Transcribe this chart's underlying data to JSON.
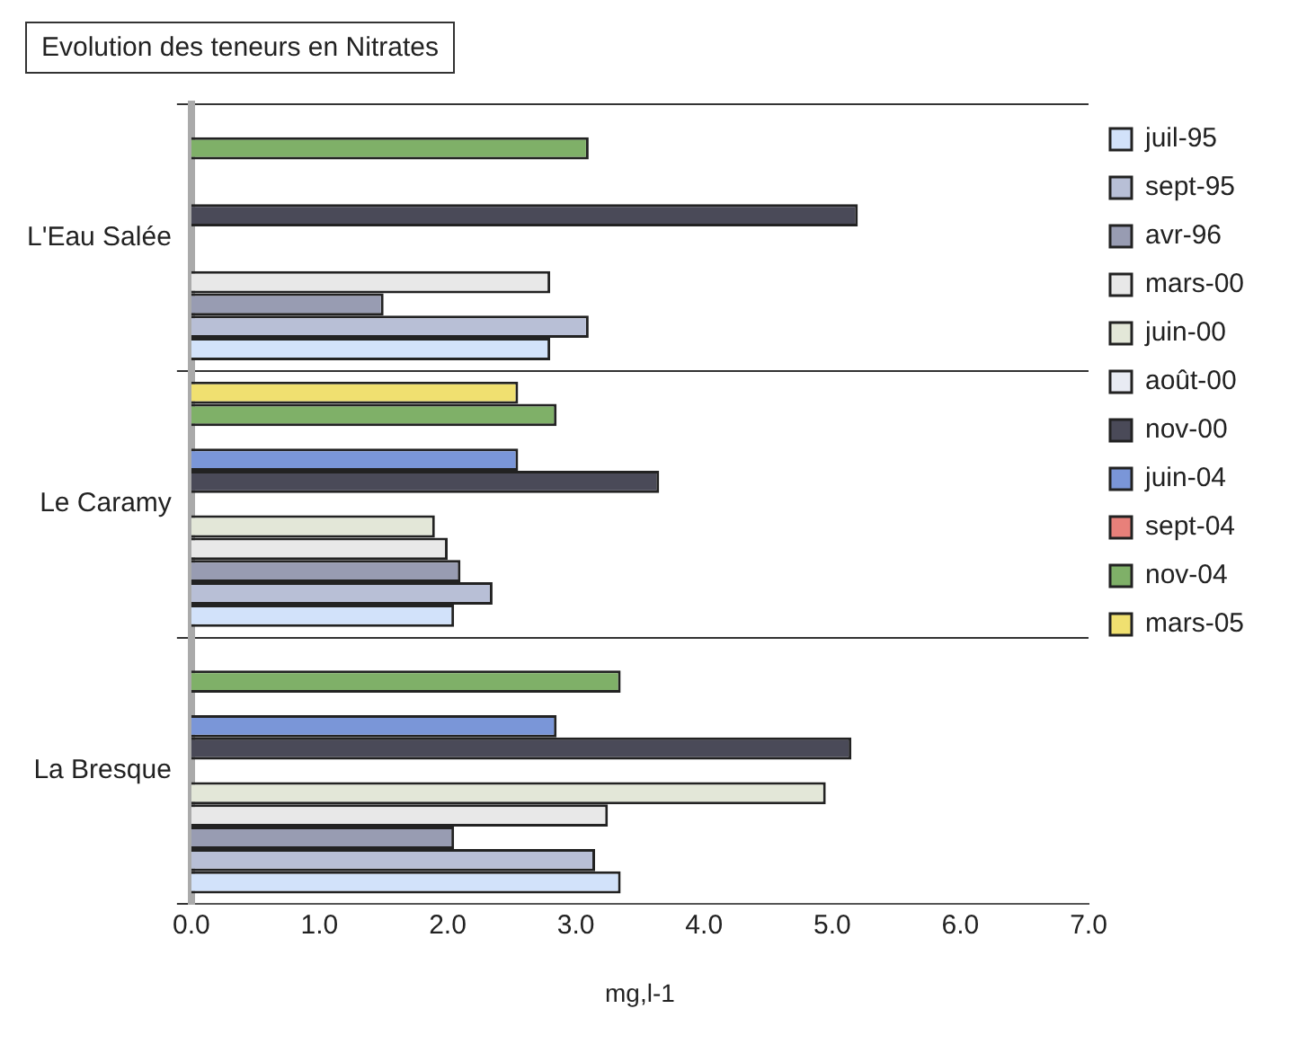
{
  "chart_data": {
    "type": "bar",
    "orientation": "horizontal",
    "title": "Evolution des teneurs en Nitrates",
    "xlabel": "mg,l-1",
    "categories": [
      "L'Eau Salée",
      "Le Caramy",
      "La Bresque"
    ],
    "series": [
      {
        "name": "juil-95",
        "color": "#d2e2fa",
        "values": [
          2.8,
          2.05,
          3.35
        ]
      },
      {
        "name": "sept-95",
        "color": "#b8bfd6",
        "values": [
          3.1,
          2.35,
          3.15
        ]
      },
      {
        "name": "avr-96",
        "color": "#989cb2",
        "values": [
          1.5,
          2.1,
          2.05
        ]
      },
      {
        "name": "mars-00",
        "color": "#e8e8e8",
        "values": [
          2.8,
          2.0,
          3.25
        ]
      },
      {
        "name": "juin-00",
        "color": "#e3e7d8",
        "values": [
          null,
          1.9,
          4.95
        ]
      },
      {
        "name": "août-00",
        "color": "#e8ebf3",
        "values": [
          null,
          null,
          null
        ]
      },
      {
        "name": "nov-00",
        "color": "#4a4a58",
        "values": [
          5.2,
          3.65,
          5.15
        ]
      },
      {
        "name": "juin-04",
        "color": "#7a96d8",
        "values": [
          null,
          2.55,
          2.85
        ]
      },
      {
        "name": "sept-04",
        "color": "#e8807a",
        "values": [
          null,
          null,
          null
        ]
      },
      {
        "name": "nov-04",
        "color": "#7fb068",
        "values": [
          3.1,
          2.85,
          3.35
        ]
      },
      {
        "name": "mars-05",
        "color": "#f0e070",
        "values": [
          null,
          2.55,
          null
        ]
      }
    ],
    "xlim": [
      0,
      7
    ],
    "xticks": [
      {
        "value": 0,
        "label": "0.0"
      },
      {
        "value": 1,
        "label": "1.0"
      },
      {
        "value": 2,
        "label": "2.0"
      },
      {
        "value": 3,
        "label": "3.0"
      },
      {
        "value": 4,
        "label": "4.0"
      },
      {
        "value": 5,
        "label": "5.0"
      },
      {
        "value": 6,
        "label": "6.0"
      },
      {
        "value": 7,
        "label": "7.0"
      }
    ],
    "grid": "y",
    "legend": "right"
  }
}
